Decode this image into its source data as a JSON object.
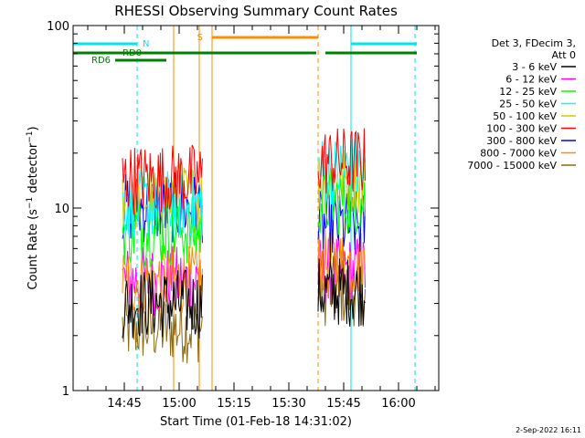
{
  "chart_data": {
    "type": "line",
    "title": "RHESSI Observing Summary Count Rates",
    "xlabel": "Start Time (01-Feb-18 14:31:02)",
    "ylabel": "Count Rate (s⁻¹ detector⁻¹)",
    "ylabel_parts": {
      "main": "Count Rate (s",
      "exp1": "−1",
      "mid": " detector",
      "exp2": "−1",
      "end": ")"
    },
    "yscale": "log",
    "ylim": [
      1,
      100
    ],
    "xlim_minutes": [
      0,
      100
    ],
    "y_ticks": [
      {
        "value": 1,
        "label": "1"
      },
      {
        "value": 10,
        "label": "10"
      },
      {
        "value": 100,
        "label": "100"
      }
    ],
    "x_ticks": [
      {
        "minute": 14,
        "label": "14:45"
      },
      {
        "minute": 29,
        "label": "15:00"
      },
      {
        "minute": 44,
        "label": "15:15"
      },
      {
        "minute": 59,
        "label": "15:30"
      },
      {
        "minute": 74,
        "label": "15:45"
      },
      {
        "minute": 89,
        "label": "16:00"
      }
    ],
    "legend_header": [
      "Det 3, FDecim 3,",
      "Att 0"
    ],
    "series": [
      {
        "name": "3 - 6 keV",
        "color": "#000000"
      },
      {
        "name": "6 - 12 keV",
        "color": "#ff00ff"
      },
      {
        "name": "12 - 25 keV",
        "color": "#00ff00"
      },
      {
        "name": "25 - 50 keV",
        "color": "#00ffff"
      },
      {
        "name": "50 - 100 keV",
        "color": "#cccc00"
      },
      {
        "name": "100 - 300 keV",
        "color": "#ff0000"
      },
      {
        "name": "300 - 800 keV",
        "color": "#0000ff"
      },
      {
        "name": "800 - 7000 keV",
        "color": "#ff8c00"
      },
      {
        "name": "7000 - 15000 keV",
        "color": "#8b6914"
      }
    ],
    "segments": [
      {
        "start": 13.5,
        "end": 35.5,
        "levels": [
          3.0,
          4.0,
          7.5,
          10.5,
          11.5,
          14.5,
          10.0,
          4.0,
          2.2
        ]
      },
      {
        "start": 67.0,
        "end": 80.0,
        "levels": [
          3.5,
          4.5,
          11.0,
          16.0,
          14.0,
          18.0,
          8.0,
          5.0,
          3.5
        ]
      }
    ],
    "flag_bars": [
      {
        "label": "N",
        "color": "#00e5ee",
        "ranges": [
          [
            0,
            17.5
          ],
          [
            76,
            94
          ]
        ],
        "row": "N"
      },
      {
        "label": "S",
        "color": "#ff8c00",
        "ranges": [
          [
            38,
            67
          ]
        ],
        "row": "S"
      },
      {
        "label": "RD0",
        "color": "#008000",
        "ranges": [
          [
            0,
            66.5
          ],
          [
            69,
            94
          ]
        ],
        "row": "RD0"
      },
      {
        "label": "RD6",
        "color": "#008000",
        "ranges": [
          [
            11.5,
            25.5
          ]
        ],
        "row": "RD6"
      }
    ],
    "vertical_markers": [
      {
        "minute": 17.5,
        "color": "#00e5ee",
        "style": "dashed"
      },
      {
        "minute": 38,
        "color": "#ff8c00",
        "style": "solid"
      },
      {
        "minute": 67,
        "color": "#ff8c00",
        "style": "dashed"
      },
      {
        "minute": 76,
        "color": "#00e5ee",
        "style": "solid"
      },
      {
        "minute": 93.5,
        "color": "#00e5ee",
        "style": "dashed"
      },
      {
        "minute": 0,
        "color": "#00e5ee",
        "style": "solid"
      },
      {
        "minute": 27.5,
        "color": "#ff8c00",
        "style": "solid"
      },
      {
        "minute": 34.5,
        "color": "#ff8c00",
        "style": "solid"
      }
    ]
  },
  "footer": {
    "date": "2-Sep-2022 16:11"
  }
}
